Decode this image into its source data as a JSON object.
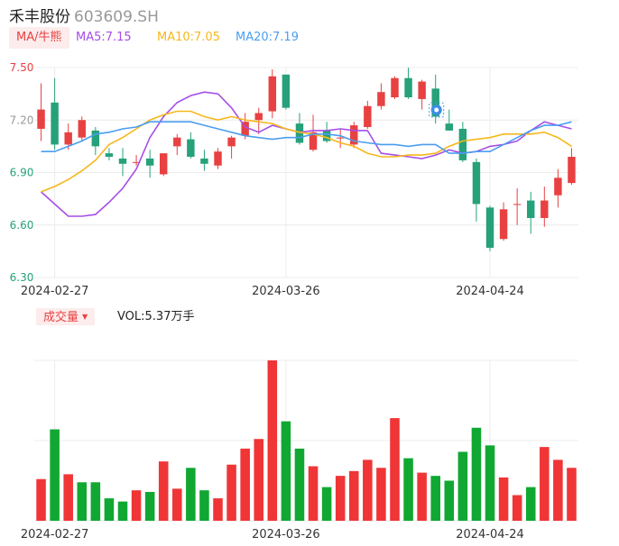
{
  "header": {
    "name": "禾丰股份",
    "code": "603609.SH"
  },
  "ma_legend": {
    "selector_label": "MA/牛熊",
    "items": [
      {
        "text": "MA5:7.15",
        "color": "#a64ee6"
      },
      {
        "text": "MA10:7.05",
        "color": "#f5b81c"
      },
      {
        "text": "MA20:7.19",
        "color": "#4a9ef0"
      }
    ]
  },
  "volume_legend": {
    "selector_label": "成交量",
    "value_text": "VOL:5.37万手"
  },
  "colors": {
    "up": "#e84142",
    "down": "#26a17a",
    "vol_up": "#f03536",
    "vol_down": "#10a832",
    "grid": "#ececec"
  },
  "chart_data": [
    {
      "type": "candlestick",
      "y_ticks": [
        "7.50",
        "7.20",
        "6.90",
        "6.60",
        "6.30"
      ],
      "ylim": [
        6.3,
        7.5
      ],
      "x_tick_labels": [
        {
          "label": "2024-02-27",
          "index": 1
        },
        {
          "label": "2024-03-26",
          "index": 18
        },
        {
          "label": "2024-04-24",
          "index": 33
        }
      ],
      "candles": [
        {
          "o": 7.15,
          "h": 7.41,
          "l": 7.08,
          "c": 7.26
        },
        {
          "o": 7.3,
          "h": 7.44,
          "l": 7.03,
          "c": 7.06
        },
        {
          "o": 7.06,
          "h": 7.18,
          "l": 7.03,
          "c": 7.13
        },
        {
          "o": 7.1,
          "h": 7.22,
          "l": 7.08,
          "c": 7.2
        },
        {
          "o": 7.14,
          "h": 7.16,
          "l": 7.0,
          "c": 7.05
        },
        {
          "o": 7.01,
          "h": 7.04,
          "l": 6.97,
          "c": 6.99
        },
        {
          "o": 6.98,
          "h": 7.04,
          "l": 6.88,
          "c": 6.95
        },
        {
          "o": 6.96,
          "h": 7.0,
          "l": 6.94,
          "c": 6.96
        },
        {
          "o": 6.98,
          "h": 7.03,
          "l": 6.87,
          "c": 6.94
        },
        {
          "o": 6.89,
          "h": 7.01,
          "l": 6.88,
          "c": 7.01
        },
        {
          "o": 7.05,
          "h": 7.12,
          "l": 7.0,
          "c": 7.1
        },
        {
          "o": 7.09,
          "h": 7.13,
          "l": 6.98,
          "c": 6.99
        },
        {
          "o": 6.98,
          "h": 7.03,
          "l": 6.91,
          "c": 6.95
        },
        {
          "o": 6.94,
          "h": 7.04,
          "l": 6.92,
          "c": 7.02
        },
        {
          "o": 7.05,
          "h": 7.11,
          "l": 6.98,
          "c": 7.1
        },
        {
          "o": 7.11,
          "h": 7.24,
          "l": 7.09,
          "c": 7.19
        },
        {
          "o": 7.2,
          "h": 7.27,
          "l": 7.12,
          "c": 7.24
        },
        {
          "o": 7.25,
          "h": 7.49,
          "l": 7.21,
          "c": 7.45
        },
        {
          "o": 7.46,
          "h": 7.46,
          "l": 7.26,
          "c": 7.27
        },
        {
          "o": 7.18,
          "h": 7.24,
          "l": 7.06,
          "c": 7.07
        },
        {
          "o": 7.03,
          "h": 7.23,
          "l": 7.02,
          "c": 7.13
        },
        {
          "o": 7.14,
          "h": 7.19,
          "l": 7.07,
          "c": 7.08
        },
        {
          "o": 7.1,
          "h": 7.15,
          "l": 7.04,
          "c": 7.1
        },
        {
          "o": 7.06,
          "h": 7.19,
          "l": 7.04,
          "c": 7.17
        },
        {
          "o": 7.16,
          "h": 7.31,
          "l": 7.15,
          "c": 7.28
        },
        {
          "o": 7.28,
          "h": 7.41,
          "l": 7.26,
          "c": 7.36
        },
        {
          "o": 7.33,
          "h": 7.45,
          "l": 7.32,
          "c": 7.44
        },
        {
          "o": 7.44,
          "h": 7.5,
          "l": 7.32,
          "c": 7.33
        },
        {
          "o": 7.32,
          "h": 7.43,
          "l": 7.26,
          "c": 7.42
        },
        {
          "o": 7.38,
          "h": 7.46,
          "l": 7.18,
          "c": 7.22
        },
        {
          "o": 7.18,
          "h": 7.26,
          "l": 7.14,
          "c": 7.14
        },
        {
          "o": 7.15,
          "h": 7.19,
          "l": 6.96,
          "c": 6.97
        },
        {
          "o": 6.96,
          "h": 6.98,
          "l": 6.62,
          "c": 6.72
        },
        {
          "o": 6.7,
          "h": 6.71,
          "l": 6.45,
          "c": 6.47
        },
        {
          "o": 6.52,
          "h": 6.73,
          "l": 6.51,
          "c": 6.69
        },
        {
          "o": 6.72,
          "h": 6.81,
          "l": 6.6,
          "c": 6.72
        },
        {
          "o": 6.74,
          "h": 6.79,
          "l": 6.55,
          "c": 6.64
        },
        {
          "o": 6.64,
          "h": 6.82,
          "l": 6.59,
          "c": 6.74
        },
        {
          "o": 6.77,
          "h": 6.92,
          "l": 6.7,
          "c": 6.87
        },
        {
          "o": 6.84,
          "h": 7.04,
          "l": 6.83,
          "c": 6.99
        }
      ],
      "series": [
        {
          "name": "MA5",
          "color": "#a64ee6",
          "values": [
            6.79,
            6.72,
            6.65,
            6.65,
            6.66,
            6.73,
            6.81,
            6.92,
            7.1,
            7.22,
            7.3,
            7.34,
            7.36,
            7.35,
            7.27,
            7.16,
            7.13,
            7.17,
            7.15,
            7.13,
            7.14,
            7.14,
            7.15,
            7.14,
            7.14,
            7.01,
            7.0,
            6.99,
            6.98,
            7.0,
            7.03,
            7.01,
            7.02,
            7.05,
            7.06,
            7.08,
            7.14,
            7.19,
            7.17,
            7.15
          ]
        },
        {
          "name": "MA10",
          "color": "#f5b81c",
          "values": [
            6.79,
            6.82,
            6.86,
            6.91,
            6.97,
            7.06,
            7.1,
            7.15,
            7.2,
            7.23,
            7.25,
            7.25,
            7.22,
            7.2,
            7.22,
            7.2,
            7.19,
            7.18,
            7.15,
            7.13,
            7.12,
            7.1,
            7.07,
            7.05,
            7.01,
            6.99,
            6.99,
            7.0,
            7.0,
            7.01,
            7.05,
            7.08,
            7.09,
            7.1,
            7.12,
            7.12,
            7.12,
            7.13,
            7.1,
            7.05
          ]
        },
        {
          "name": "MA20",
          "color": "#4a9ef0",
          "values": [
            7.02,
            7.02,
            7.05,
            7.08,
            7.12,
            7.13,
            7.15,
            7.16,
            7.19,
            7.19,
            7.19,
            7.19,
            7.17,
            7.15,
            7.13,
            7.11,
            7.1,
            7.09,
            7.1,
            7.1,
            7.12,
            7.12,
            7.11,
            7.08,
            7.07,
            7.06,
            7.06,
            7.05,
            7.06,
            7.06,
            7.01,
            7.01,
            7.02,
            7.02,
            7.06,
            7.1,
            7.14,
            7.17,
            7.17,
            7.19
          ]
        }
      ]
    },
    {
      "type": "bar",
      "name": "VOL",
      "x_tick_labels": [
        {
          "label": "2024-02-27",
          "index": 1
        },
        {
          "label": "2024-03-26",
          "index": 18
        },
        {
          "label": "2024-04-24",
          "index": 33
        }
      ],
      "ylim": [
        0,
        10.0
      ],
      "values": [
        2.6,
        5.7,
        2.9,
        2.4,
        2.4,
        1.4,
        1.2,
        1.9,
        1.8,
        3.7,
        2.0,
        3.3,
        1.9,
        1.4,
        3.5,
        4.5,
        5.1,
        10.0,
        6.2,
        4.5,
        3.4,
        2.1,
        2.8,
        3.1,
        3.8,
        3.3,
        6.4,
        3.9,
        3.0,
        2.8,
        2.5,
        4.3,
        5.8,
        4.7,
        2.7,
        1.6,
        2.1,
        4.6,
        3.8,
        3.3
      ],
      "up": [
        true,
        false,
        true,
        false,
        false,
        false,
        false,
        true,
        false,
        true,
        true,
        false,
        false,
        true,
        true,
        true,
        true,
        true,
        false,
        false,
        true,
        false,
        true,
        true,
        true,
        true,
        true,
        false,
        true,
        false,
        false,
        false,
        false,
        false,
        true,
        true,
        false,
        true,
        true,
        true
      ]
    }
  ]
}
